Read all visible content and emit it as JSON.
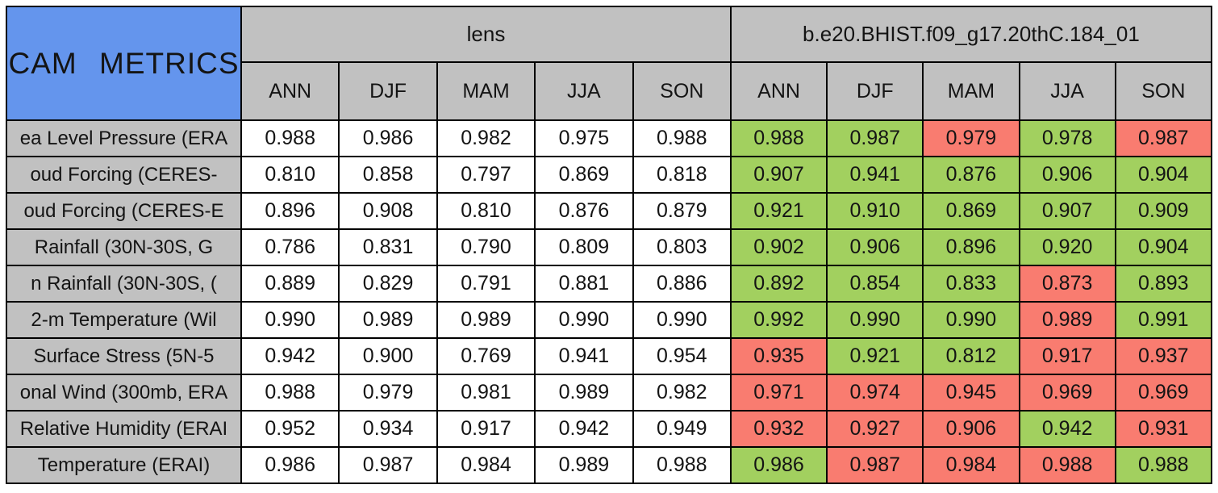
{
  "colors": {
    "border_black": "#000000",
    "header_blue": "#6495ED",
    "header_gray": "#C1C1C1",
    "cell_white": "#FFFFFF",
    "good_green": "#A2D05F",
    "bad_red": "#F97C70",
    "text_black": "#141414"
  },
  "chart_data": {
    "type": "table",
    "title": "CAM METRICS",
    "column_groups": [
      "lens",
      "b.e20.BHIST.f09_g17.20thC.184_01"
    ],
    "season_columns": [
      "ANN",
      "DJF",
      "MAM",
      "JJA",
      "SON"
    ],
    "rows": [
      {
        "label": "ea Level Pressure (ERA",
        "lens": [
          "0.988",
          "0.986",
          "0.982",
          "0.975",
          "0.988"
        ],
        "case": [
          {
            "value": "0.988",
            "color": "green"
          },
          {
            "value": "0.987",
            "color": "green"
          },
          {
            "value": "0.979",
            "color": "red"
          },
          {
            "value": "0.978",
            "color": "green"
          },
          {
            "value": "0.987",
            "color": "red"
          }
        ]
      },
      {
        "label": "oud Forcing (CERES-",
        "lens": [
          "0.810",
          "0.858",
          "0.797",
          "0.869",
          "0.818"
        ],
        "case": [
          {
            "value": "0.907",
            "color": "green"
          },
          {
            "value": "0.941",
            "color": "green"
          },
          {
            "value": "0.876",
            "color": "green"
          },
          {
            "value": "0.906",
            "color": "green"
          },
          {
            "value": "0.904",
            "color": "green"
          }
        ]
      },
      {
        "label": "oud Forcing (CERES-E",
        "lens": [
          "0.896",
          "0.908",
          "0.810",
          "0.876",
          "0.879"
        ],
        "case": [
          {
            "value": "0.921",
            "color": "green"
          },
          {
            "value": "0.910",
            "color": "green"
          },
          {
            "value": "0.869",
            "color": "green"
          },
          {
            "value": "0.907",
            "color": "green"
          },
          {
            "value": "0.909",
            "color": "green"
          }
        ]
      },
      {
        "label": "Rainfall (30N-30S, G",
        "lens": [
          "0.786",
          "0.831",
          "0.790",
          "0.809",
          "0.803"
        ],
        "case": [
          {
            "value": "0.902",
            "color": "green"
          },
          {
            "value": "0.906",
            "color": "green"
          },
          {
            "value": "0.896",
            "color": "green"
          },
          {
            "value": "0.920",
            "color": "green"
          },
          {
            "value": "0.904",
            "color": "green"
          }
        ]
      },
      {
        "label": "n Rainfall (30N-30S, (",
        "lens": [
          "0.889",
          "0.829",
          "0.791",
          "0.881",
          "0.886"
        ],
        "case": [
          {
            "value": "0.892",
            "color": "green"
          },
          {
            "value": "0.854",
            "color": "green"
          },
          {
            "value": "0.833",
            "color": "green"
          },
          {
            "value": "0.873",
            "color": "red"
          },
          {
            "value": "0.893",
            "color": "green"
          }
        ]
      },
      {
        "label": "2-m Temperature (Wil",
        "lens": [
          "0.990",
          "0.989",
          "0.989",
          "0.990",
          "0.990"
        ],
        "case": [
          {
            "value": "0.992",
            "color": "green"
          },
          {
            "value": "0.990",
            "color": "green"
          },
          {
            "value": "0.990",
            "color": "green"
          },
          {
            "value": "0.989",
            "color": "red"
          },
          {
            "value": "0.991",
            "color": "green"
          }
        ]
      },
      {
        "label": "Surface Stress (5N-5",
        "lens": [
          "0.942",
          "0.900",
          "0.769",
          "0.941",
          "0.954"
        ],
        "case": [
          {
            "value": "0.935",
            "color": "red"
          },
          {
            "value": "0.921",
            "color": "green"
          },
          {
            "value": "0.812",
            "color": "green"
          },
          {
            "value": "0.917",
            "color": "red"
          },
          {
            "value": "0.937",
            "color": "red"
          }
        ]
      },
      {
        "label": "onal Wind (300mb, ERA",
        "lens": [
          "0.988",
          "0.979",
          "0.981",
          "0.989",
          "0.982"
        ],
        "case": [
          {
            "value": "0.971",
            "color": "red"
          },
          {
            "value": "0.974",
            "color": "red"
          },
          {
            "value": "0.945",
            "color": "red"
          },
          {
            "value": "0.969",
            "color": "red"
          },
          {
            "value": "0.969",
            "color": "red"
          }
        ]
      },
      {
        "label": "Relative Humidity (ERAI",
        "lens": [
          "0.952",
          "0.934",
          "0.917",
          "0.942",
          "0.949"
        ],
        "case": [
          {
            "value": "0.932",
            "color": "red"
          },
          {
            "value": "0.927",
            "color": "red"
          },
          {
            "value": "0.906",
            "color": "red"
          },
          {
            "value": "0.942",
            "color": "green"
          },
          {
            "value": "0.931",
            "color": "red"
          }
        ]
      },
      {
        "label": "Temperature (ERAI)",
        "lens": [
          "0.986",
          "0.987",
          "0.984",
          "0.989",
          "0.988"
        ],
        "case": [
          {
            "value": "0.986",
            "color": "green"
          },
          {
            "value": "0.987",
            "color": "red"
          },
          {
            "value": "0.984",
            "color": "red"
          },
          {
            "value": "0.988",
            "color": "red"
          },
          {
            "value": "0.988",
            "color": "green"
          }
        ]
      }
    ]
  }
}
